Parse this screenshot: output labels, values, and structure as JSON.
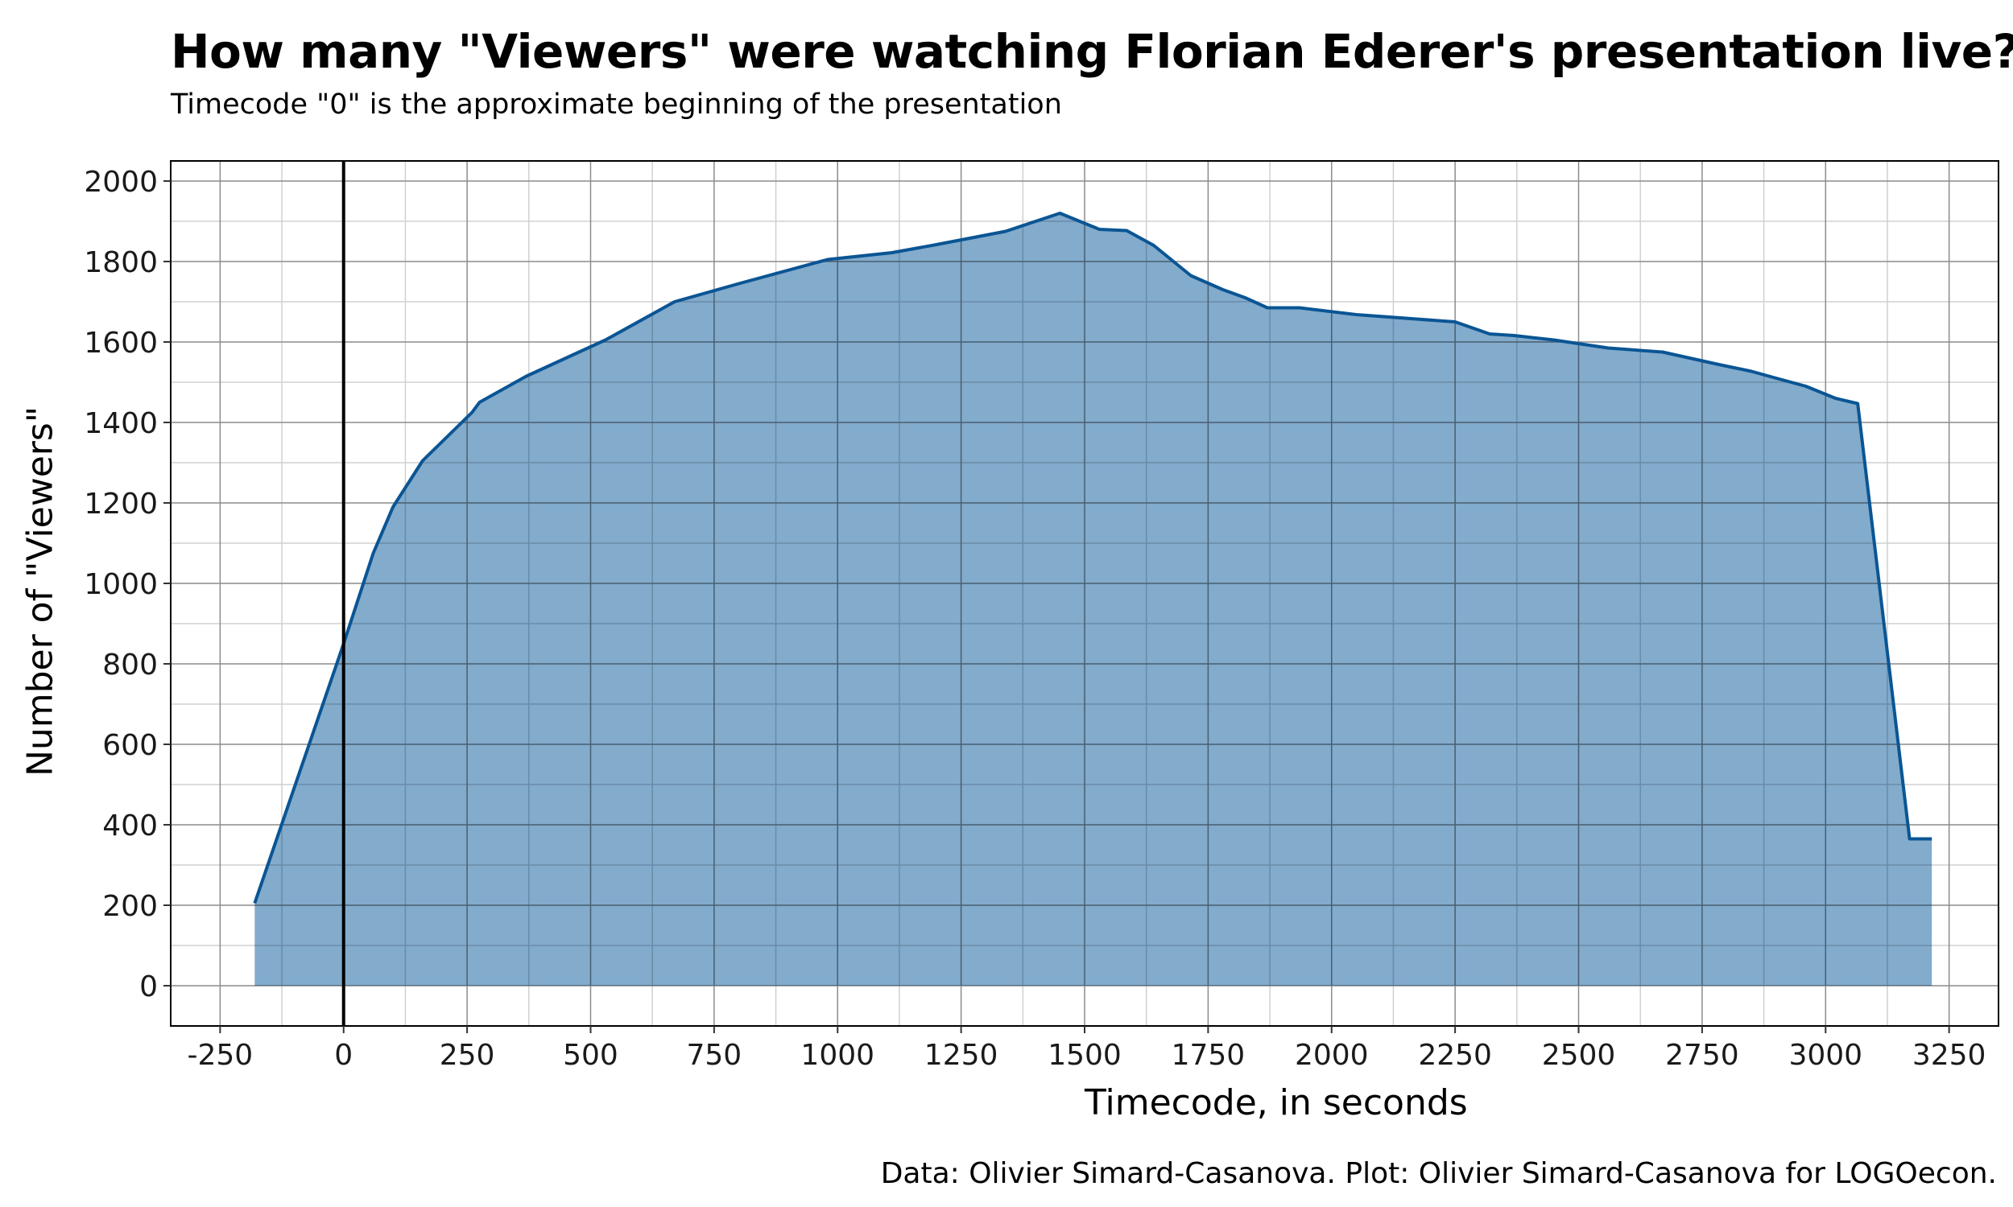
{
  "title": "How many \"Viewers\" were watching Florian Ederer's presentation live?",
  "subtitle": "Timecode \"0\" is the approximate beginning of the presentation",
  "caption": "Data: Olivier Simard-Casanova. Plot: Olivier Simard-Casanova for LOGOecon.",
  "colors": {
    "area_fill": "#7ba7c9",
    "line": "#0a5594",
    "reference_line": "#000000",
    "grid_major": "#8c8c8c",
    "grid_minor": "#d0d0d0"
  },
  "chart_data": {
    "type": "area",
    "title": "How many \"Viewers\" were watching Florian Ederer's presentation live?",
    "subtitle": "Timecode \"0\" is the approximate beginning of the presentation",
    "xlabel": "Timecode, in seconds",
    "ylabel": "Number of \"Viewers\"",
    "xlim": [
      -350,
      3350
    ],
    "ylim": [
      -100,
      2050
    ],
    "x_ticks": [
      -250,
      0,
      250,
      500,
      750,
      1000,
      1250,
      1500,
      1750,
      2000,
      2250,
      2500,
      2750,
      3000,
      3250
    ],
    "x_tick_labels": [
      "-250",
      "0",
      "250",
      "500",
      "750",
      "1000",
      "1250",
      "1500",
      "1750",
      "2000",
      "2250",
      "2500",
      "2750",
      "3000",
      "3250"
    ],
    "y_ticks": [
      0,
      200,
      400,
      600,
      800,
      1000,
      1200,
      1400,
      1600,
      1800,
      2000
    ],
    "y_tick_labels": [
      "0",
      "200",
      "400",
      "600",
      "800",
      "1000",
      "1200",
      "1400",
      "1600",
      "1800",
      "2000"
    ],
    "grid": true,
    "vertical_reference_x": 0,
    "series": [
      {
        "x": [
          -180,
          0,
          60,
          100,
          160,
          260,
          275,
          370,
          530,
          670,
          800,
          980,
          1110,
          1200,
          1340,
          1450,
          1530,
          1585,
          1640,
          1715,
          1780,
          1825,
          1870,
          1935,
          2050,
          2250,
          2320,
          2370,
          2450,
          2560,
          2670,
          2780,
          2850,
          2900,
          2960,
          3020,
          3065,
          3170,
          3215
        ],
        "y": [
          205,
          850,
          1075,
          1190,
          1305,
          1425,
          1450,
          1515,
          1605,
          1700,
          1745,
          1805,
          1822,
          1842,
          1875,
          1920,
          1880,
          1877,
          1840,
          1765,
          1730,
          1710,
          1685,
          1685,
          1668,
          1650,
          1620,
          1616,
          1605,
          1585,
          1575,
          1545,
          1527,
          1510,
          1490,
          1460,
          1447,
          365,
          365
        ]
      }
    ]
  }
}
